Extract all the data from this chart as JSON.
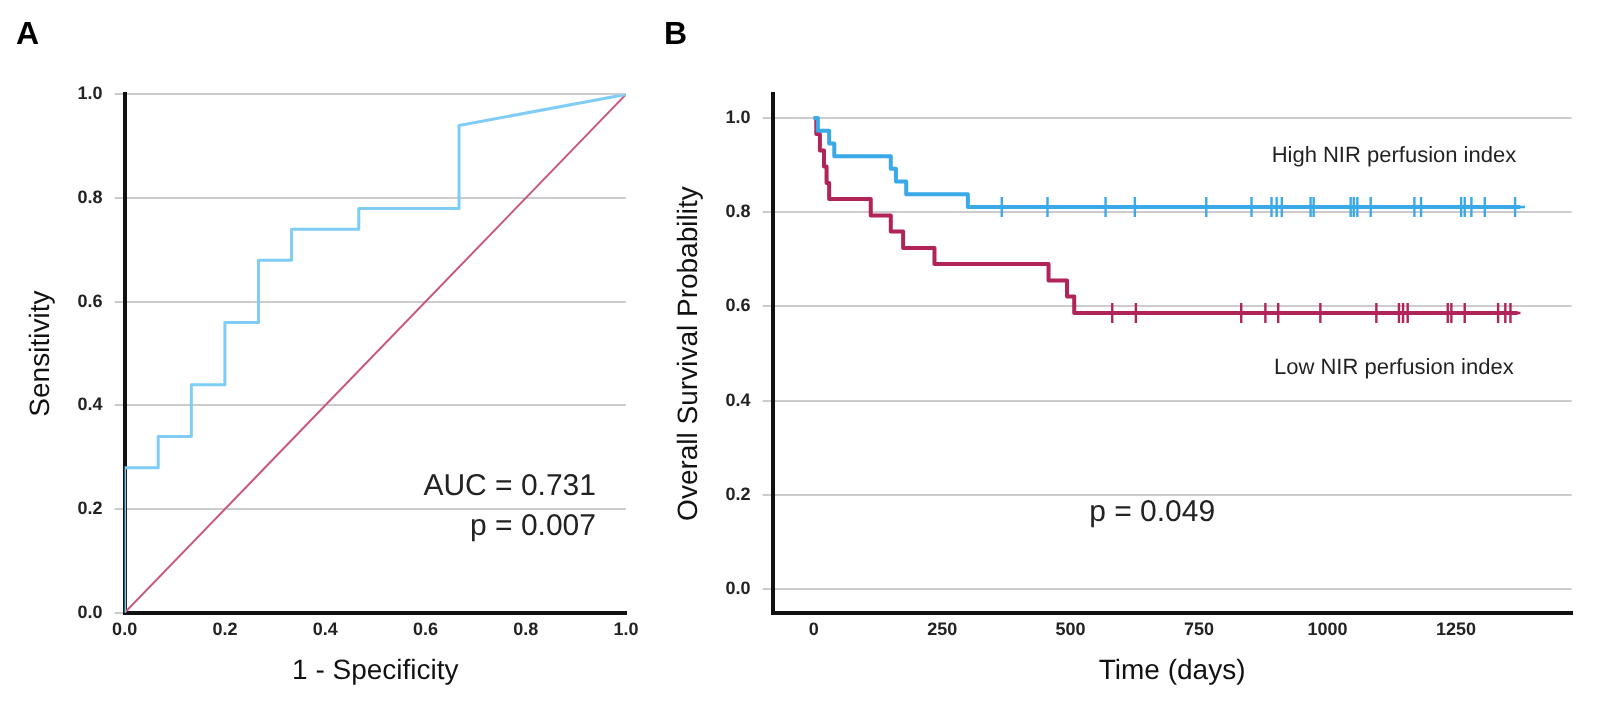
{
  "chart_data": [
    {
      "type": "line",
      "title": "A",
      "xlabel": "1 - Specificity",
      "ylabel": "Sensitivity",
      "xlim": [
        0,
        1
      ],
      "ylim": [
        0,
        1
      ],
      "xticks": [
        {
          "value": 0,
          "label": "0.0"
        },
        {
          "value": 0.2,
          "label": "0.2"
        },
        {
          "value": 0.4,
          "label": "0.4"
        },
        {
          "value": 0.6,
          "label": "0.6"
        },
        {
          "value": 0.8,
          "label": "0.8"
        },
        {
          "value": 1,
          "label": "1.0"
        }
      ],
      "yticks": [
        {
          "value": 0,
          "label": "0.0"
        },
        {
          "value": 0.2,
          "label": "0.2"
        },
        {
          "value": 0.4,
          "label": "0.4"
        },
        {
          "value": 0.6,
          "label": "0.6"
        },
        {
          "value": 0.8,
          "label": "0.8"
        },
        {
          "value": 1,
          "label": "1.0"
        }
      ],
      "grid": "y",
      "legend": false,
      "marker": "none",
      "series": [
        {
          "type": "line",
          "color": "#7fcdf5",
          "x": [
            0,
            0,
            0.067,
            0.067,
            0.133,
            0.133,
            0.2,
            0.2,
            0.267,
            0.267,
            0.333,
            0.333,
            0.467,
            0.467,
            0.667,
            0.667,
            1
          ],
          "values": [
            0,
            0.28,
            0.28,
            0.34,
            0.34,
            0.44,
            0.44,
            0.56,
            0.56,
            0.68,
            0.68,
            0.74,
            0.74,
            0.78,
            0.78,
            0.94,
            1
          ]
        },
        {
          "type": "line",
          "color": "#c8577a",
          "x": [
            0,
            1
          ],
          "values": [
            0,
            1
          ]
        }
      ],
      "annotations": [
        "AUC = 0.731",
        "p = 0.007"
      ]
    },
    {
      "type": "step",
      "title": "B",
      "xlabel": "Time (days)",
      "ylabel": "Overall Survival Probability",
      "xlim": [
        -80,
        1475
      ],
      "ylim": [
        -0.05,
        1.05
      ],
      "xticks": [
        0,
        250,
        500,
        750,
        1000,
        1250
      ],
      "yticks": [
        {
          "value": 0,
          "label": "0.0"
        },
        {
          "value": 0.2,
          "label": "0.2"
        },
        {
          "value": 0.4,
          "label": "0.4"
        },
        {
          "value": 0.6,
          "label": "0.6"
        },
        {
          "value": 0.8,
          "label": "0.8"
        },
        {
          "value": 1,
          "label": "1.0"
        }
      ],
      "grid": "y",
      "legend": false,
      "series": [
        {
          "type": "step",
          "name": "High NIR perfusion index",
          "color": "#3aa9e8",
          "marker": "none",
          "x": [
            0,
            8,
            30,
            40,
            150,
            160,
            180,
            300,
            1375
          ],
          "values": [
            1,
            0.973,
            0.946,
            0.919,
            0.892,
            0.865,
            0.838,
            0.811,
            0.811
          ]
        },
        {
          "type": "step",
          "name": "Low NIR perfusion index",
          "color": "#b0245a",
          "marker": "none",
          "x": [
            0,
            5,
            12,
            20,
            25,
            30,
            111,
            150,
            174,
            235,
            457,
            493,
            507,
            1370
          ],
          "values": [
            1,
            0.966,
            0.931,
            0.897,
            0.862,
            0.828,
            0.793,
            0.759,
            0.724,
            0.69,
            0.655,
            0.621,
            0.586,
            0.586
          ]
        },
        {
          "type": "scatter",
          "color": "#3aa9e8",
          "marker": "cross",
          "x": [
            366,
            455,
            568,
            625,
            764,
            852,
            891,
            901,
            911,
            967,
            973,
            1045,
            1051,
            1058,
            1084,
            1169,
            1182,
            1260,
            1267,
            1280,
            1306,
            1365
          ],
          "values": [
            0.811,
            0.811,
            0.811,
            0.811,
            0.811,
            0.811,
            0.811,
            0.811,
            0.811,
            0.811,
            0.811,
            0.811,
            0.811,
            0.811,
            0.811,
            0.811,
            0.811,
            0.811,
            0.811,
            0.811,
            0.811,
            0.811
          ]
        },
        {
          "type": "scatter",
          "color": "#b0245a",
          "marker": "cross",
          "x": [
            581,
            627,
            832,
            879,
            904,
            986,
            1095,
            1139,
            1147,
            1156,
            1234,
            1241,
            1267,
            1332,
            1346,
            1356
          ],
          "values": [
            0.586,
            0.586,
            0.586,
            0.586,
            0.586,
            0.586,
            0.586,
            0.586,
            0.586,
            0.586,
            0.586,
            0.586,
            0.586,
            0.586,
            0.586,
            0.586
          ]
        }
      ],
      "annotations": [
        "p = 0.049"
      ]
    }
  ]
}
